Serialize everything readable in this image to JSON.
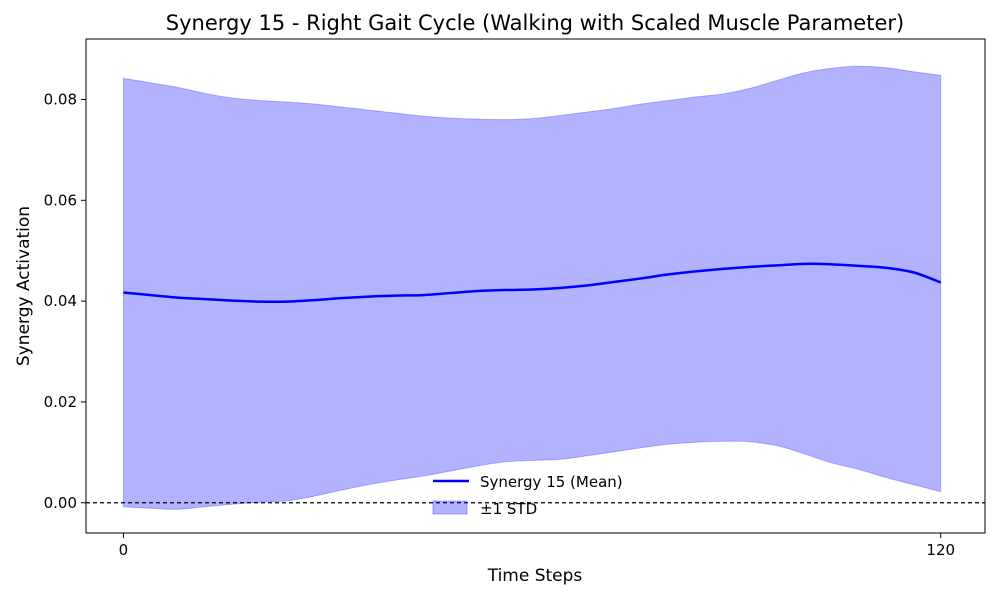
{
  "chart_data": {
    "type": "area",
    "title": "Synergy 15 - Right Gait Cycle (Walking with Scaled Muscle Parameter)",
    "xlabel": "Time Steps",
    "ylabel": "Synergy Activation",
    "xlim": [
      -5.5,
      126.5
    ],
    "ylim": [
      -0.006,
      0.092
    ],
    "xticks": [
      0,
      120
    ],
    "yticks": [
      0.0,
      0.02,
      0.04,
      0.06,
      0.08
    ],
    "ytick_labels": [
      "0.00",
      "0.02",
      "0.04",
      "0.06",
      "0.08"
    ],
    "grid": false,
    "legend_position": "bottom-center",
    "reference_line": {
      "y": 0.0,
      "style": "dashed",
      "color": "#000000"
    },
    "x": [
      0,
      4,
      8,
      12,
      16,
      20,
      24,
      28,
      32,
      36,
      40,
      44,
      48,
      52,
      56,
      60,
      64,
      68,
      72,
      76,
      80,
      84,
      88,
      92,
      96,
      100,
      104,
      108,
      112,
      116,
      120
    ],
    "series": [
      {
        "name": "Synergy 15 (Mean)",
        "role": "line",
        "color": "#0000ff",
        "values": [
          0.0417,
          0.0412,
          0.0407,
          0.0404,
          0.0401,
          0.0399,
          0.0399,
          0.0402,
          0.0406,
          0.0409,
          0.0411,
          0.0412,
          0.0416,
          0.042,
          0.0422,
          0.0423,
          0.0426,
          0.0431,
          0.0438,
          0.0445,
          0.0453,
          0.0459,
          0.0464,
          0.0468,
          0.0471,
          0.0474,
          0.0473,
          0.047,
          0.0466,
          0.0457,
          0.0437
        ]
      },
      {
        "name": "±1 STD",
        "role": "band",
        "color": "#0000ff",
        "fill_opacity": 0.3,
        "upper": [
          0.0842,
          0.0833,
          0.0824,
          0.0812,
          0.0803,
          0.0798,
          0.0795,
          0.0791,
          0.0785,
          0.0779,
          0.0773,
          0.0767,
          0.0763,
          0.0761,
          0.076,
          0.0762,
          0.0768,
          0.0775,
          0.0782,
          0.0791,
          0.0798,
          0.0805,
          0.0811,
          0.0822,
          0.0838,
          0.0853,
          0.0862,
          0.0866,
          0.0863,
          0.0855,
          0.0848
        ],
        "lower": [
          -0.0008,
          -0.0011,
          -0.0013,
          -0.0008,
          -0.0003,
          0.0001,
          0.0004,
          0.0013,
          0.0025,
          0.0036,
          0.0045,
          0.0053,
          0.0063,
          0.0073,
          0.0081,
          0.0084,
          0.0086,
          0.0093,
          0.0101,
          0.0109,
          0.0116,
          0.012,
          0.0122,
          0.0121,
          0.0113,
          0.0097,
          0.0079,
          0.0066,
          0.005,
          0.0036,
          0.0022
        ]
      }
    ]
  }
}
